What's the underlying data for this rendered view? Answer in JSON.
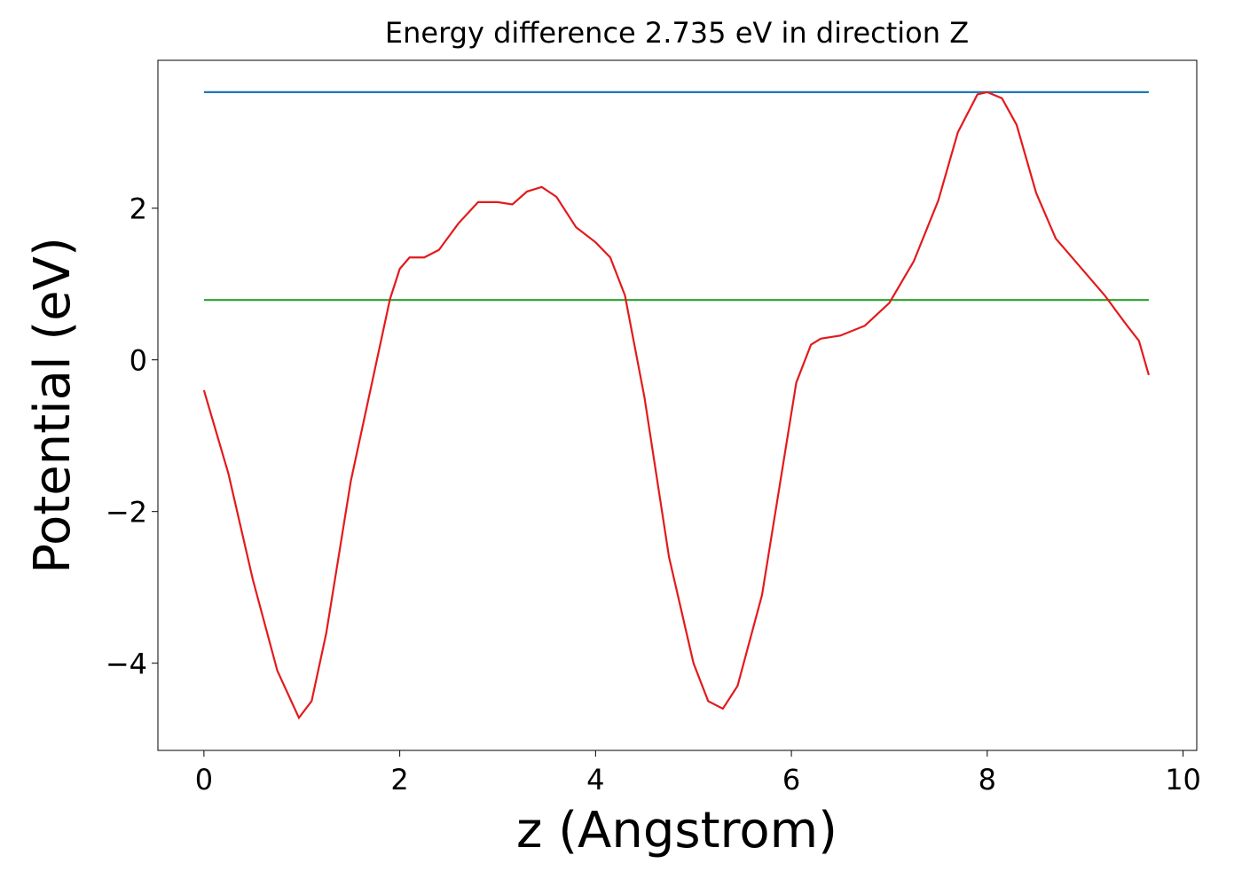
{
  "chart_data": {
    "type": "line",
    "title": "Energy difference 2.735 eV in direction Z",
    "xlabel": "z (Angstrom)",
    "ylabel": "Potential (eV)",
    "xlim": [
      -0.47,
      10.14
    ],
    "ylim": [
      -5.15,
      3.95
    ],
    "xticks": [
      0,
      2,
      4,
      6,
      8,
      10
    ],
    "yticks": [
      {
        "value": -4,
        "label": "−4"
      },
      {
        "value": -2,
        "label": "−2"
      },
      0,
      2
    ],
    "series": [
      {
        "color": "#1f77b4",
        "x": [
          0,
          9.65
        ],
        "values": [
          3.53,
          3.53
        ]
      },
      {
        "color": "#2ca02c",
        "x": [
          0,
          9.65
        ],
        "values": [
          0.79,
          0.79
        ]
      },
      {
        "color": "#e31a1c",
        "x": [
          0,
          0.25,
          0.5,
          0.75,
          0.97,
          1.1,
          1.25,
          1.5,
          1.75,
          1.9,
          2.0,
          2.1,
          2.25,
          2.4,
          2.6,
          2.8,
          3.0,
          3.15,
          3.3,
          3.45,
          3.6,
          3.8,
          4.0,
          4.15,
          4.3,
          4.5,
          4.75,
          5.0,
          5.15,
          5.3,
          5.45,
          5.7,
          5.9,
          6.05,
          6.2,
          6.3,
          6.5,
          6.75,
          7.0,
          7.25,
          7.5,
          7.7,
          7.9,
          8.0,
          8.15,
          8.3,
          8.5,
          8.7,
          8.9,
          9.2,
          9.4,
          9.55,
          9.65
        ],
        "values": [
          -0.4,
          -1.5,
          -2.9,
          -4.1,
          -4.72,
          -4.5,
          -3.6,
          -1.6,
          -0.1,
          0.8,
          1.2,
          1.35,
          1.35,
          1.45,
          1.8,
          2.08,
          2.08,
          2.05,
          2.22,
          2.28,
          2.15,
          1.75,
          1.55,
          1.35,
          0.85,
          -0.5,
          -2.6,
          -4.0,
          -4.5,
          -4.6,
          -4.3,
          -3.1,
          -1.5,
          -0.3,
          0.2,
          0.28,
          0.32,
          0.45,
          0.75,
          1.3,
          2.1,
          3.0,
          3.5,
          3.53,
          3.45,
          3.1,
          2.2,
          1.6,
          1.3,
          0.85,
          0.5,
          0.25,
          -0.2
        ]
      }
    ]
  }
}
